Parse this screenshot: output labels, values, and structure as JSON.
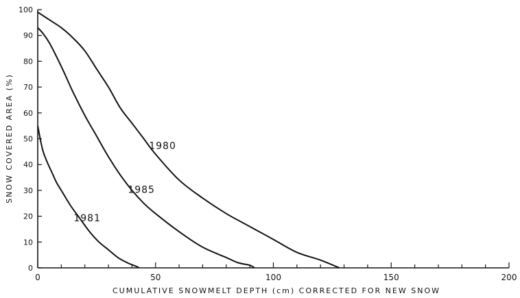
{
  "chart_data": {
    "type": "line",
    "title": "",
    "xlabel": "CUMULATIVE SNOWMELT DEPTH (cm) CORRECTED FOR NEW SNOW",
    "ylabel": "SNOW COVERED AREA (%)",
    "xlim": [
      0,
      200
    ],
    "ylim": [
      0,
      100
    ],
    "x_ticks": [
      0,
      50,
      100,
      150,
      200
    ],
    "x_tick_labels": [
      "0",
      "50",
      "100",
      "150",
      "200"
    ],
    "x_minor_ticks": [
      10,
      20,
      30,
      40,
      60,
      70,
      80,
      90,
      110,
      120,
      130,
      140,
      160,
      170,
      180,
      190
    ],
    "y_ticks": [
      0,
      10,
      20,
      30,
      40,
      50,
      60,
      70,
      80,
      90,
      100
    ],
    "y_tick_labels": [
      "0",
      "10",
      "20",
      "30",
      "40",
      "50",
      "60",
      "70",
      "80",
      "90",
      "100"
    ],
    "grid": false,
    "legend": "none",
    "series": [
      {
        "name": "1980",
        "label_at": [
          53,
          46
        ],
        "x": [
          0,
          5,
          10,
          15,
          20,
          25,
          30,
          35,
          40,
          45,
          50,
          60,
          70,
          80,
          90,
          100,
          110,
          120,
          128
        ],
        "y": [
          99,
          96,
          93,
          89,
          84,
          77,
          70,
          62,
          56,
          50,
          44,
          34,
          27,
          21,
          16,
          11,
          6,
          3,
          0
        ]
      },
      {
        "name": "1985",
        "label_at": [
          44,
          29
        ],
        "x": [
          0,
          2,
          5,
          10,
          15,
          20,
          25,
          30,
          35,
          40,
          45,
          50,
          60,
          70,
          80,
          85,
          90,
          92
        ],
        "y": [
          93,
          91,
          87,
          78,
          68,
          59,
          51,
          43,
          36,
          30,
          25,
          21,
          14,
          8,
          4,
          2,
          1,
          0
        ]
      },
      {
        "name": "1981",
        "label_at": [
          21,
          18
        ],
        "x": [
          0,
          2,
          4,
          6,
          8,
          10,
          14,
          18,
          22,
          26,
          30,
          34,
          38,
          42,
          43
        ],
        "y": [
          55,
          46,
          41,
          37,
          33,
          30,
          24,
          19,
          14,
          10,
          7,
          4,
          2,
          0.5,
          0
        ]
      }
    ]
  }
}
